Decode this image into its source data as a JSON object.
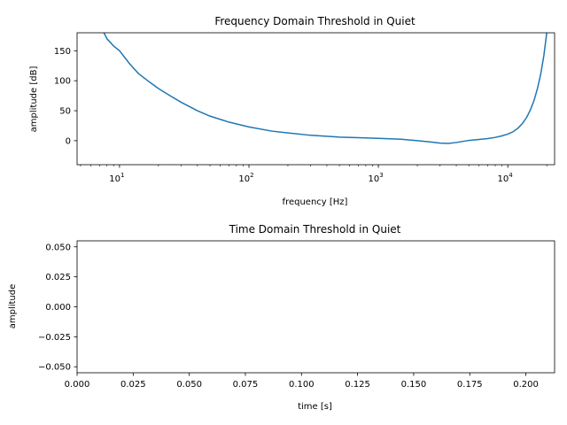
{
  "chart_data": [
    {
      "type": "line",
      "title": "Frequency Domain Threshold in Quiet",
      "xlabel": "frequency [Hz]",
      "ylabel": "amplitude [dB]",
      "xscale": "log",
      "xlim": [
        4.7,
        23000
      ],
      "ylim": [
        -40,
        180
      ],
      "yticks": [
        "0",
        "50",
        "100",
        "150"
      ],
      "xticks": [
        {
          "base": "10",
          "exp": "1"
        },
        {
          "base": "10",
          "exp": "2"
        },
        {
          "base": "10",
          "exp": "3"
        },
        {
          "base": "10",
          "exp": "4"
        }
      ],
      "grid": false,
      "line_color": "#1f77b4",
      "series": [
        {
          "x": [
            7.5,
            8,
            9,
            10,
            12,
            14,
            17,
            20,
            25,
            30,
            40,
            50,
            70,
            100,
            150,
            200,
            300,
            500,
            700,
            1000,
            1500,
            2000,
            2500,
            3000,
            3500,
            4000,
            5000,
            6000,
            7000,
            8000,
            9000,
            10000,
            11000,
            12000,
            13000,
            14000,
            15000,
            16000,
            17000,
            18000,
            19000,
            20000
          ],
          "y": [
            182,
            170,
            158,
            150,
            128,
            112,
            98,
            87,
            74,
            64,
            50,
            41,
            31,
            23,
            16,
            13,
            9,
            6,
            5,
            4,
            2.5,
            0,
            -2,
            -4,
            -4.5,
            -3,
            0.5,
            2,
            3.5,
            5.5,
            8,
            11,
            15,
            21,
            29,
            39,
            52,
            68,
            88,
            112,
            142,
            180
          ]
        }
      ]
    },
    {
      "type": "line",
      "title": "Time Domain Threshold in Quiet",
      "xlabel": "time [s]",
      "ylabel": "amplitude",
      "xlim": [
        0,
        0.2128
      ],
      "ylim": [
        -0.055,
        0.055
      ],
      "xticks": [
        "0.000",
        "0.025",
        "0.050",
        "0.075",
        "0.100",
        "0.125",
        "0.150",
        "0.175",
        "0.200"
      ],
      "yticks": [
        "0.050",
        "0.025",
        "0.000",
        "−0.025",
        "−0.050"
      ],
      "grid": false,
      "series": []
    }
  ]
}
